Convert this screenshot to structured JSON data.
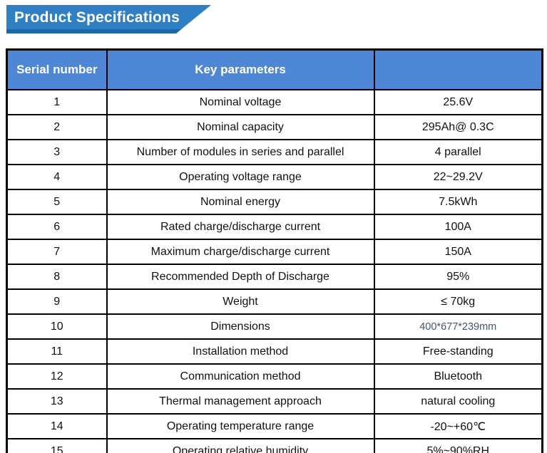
{
  "banner": {
    "title": "Product Specifications",
    "background_color": "#2e80c3",
    "shadow_color": "#1a68a8",
    "text_color": "#ffffff"
  },
  "table": {
    "header_background_color": "#4f87d7",
    "header_text_color": "#ffffff",
    "border_color": "#000000",
    "dim_value_color": "#44546a",
    "headers": [
      "Serial number",
      "Key parameters",
      ""
    ],
    "rows": [
      {
        "serial": "1",
        "parameter": "Nominal voltage",
        "value": "25.6V"
      },
      {
        "serial": "2",
        "parameter": "Nominal capacity",
        "value": "295Ah@ 0.3C"
      },
      {
        "serial": "3",
        "parameter": "Number of modules in series and parallel",
        "value": "4 parallel"
      },
      {
        "serial": "4",
        "parameter": "Operating voltage range",
        "value": "22~29.2V"
      },
      {
        "serial": "5",
        "parameter": "Nominal energy",
        "value": "7.5kWh"
      },
      {
        "serial": "6",
        "parameter": "Rated charge/discharge current",
        "value": "100A"
      },
      {
        "serial": "7",
        "parameter": "Maximum charge/discharge current",
        "value": "150A"
      },
      {
        "serial": "8",
        "parameter": "Recommended Depth of Discharge",
        "value": "95%"
      },
      {
        "serial": "9",
        "parameter": "Weight",
        "value": "≤ 70kg"
      },
      {
        "serial": "10",
        "parameter": "Dimensions",
        "value": "400*677*239mm",
        "dim": true
      },
      {
        "serial": "11",
        "parameter": "Installation method",
        "value": "Free-standing"
      },
      {
        "serial": "12",
        "parameter": "Communication method",
        "value": "Bluetooth"
      },
      {
        "serial": "13",
        "parameter": "Thermal management approach",
        "value": "natural cooling"
      },
      {
        "serial": "14",
        "parameter": "Operating temperature range",
        "value": "-20~+60℃"
      },
      {
        "serial": "15",
        "parameter": "Operating relative humidity",
        "value": "5%~90%RH"
      }
    ]
  }
}
